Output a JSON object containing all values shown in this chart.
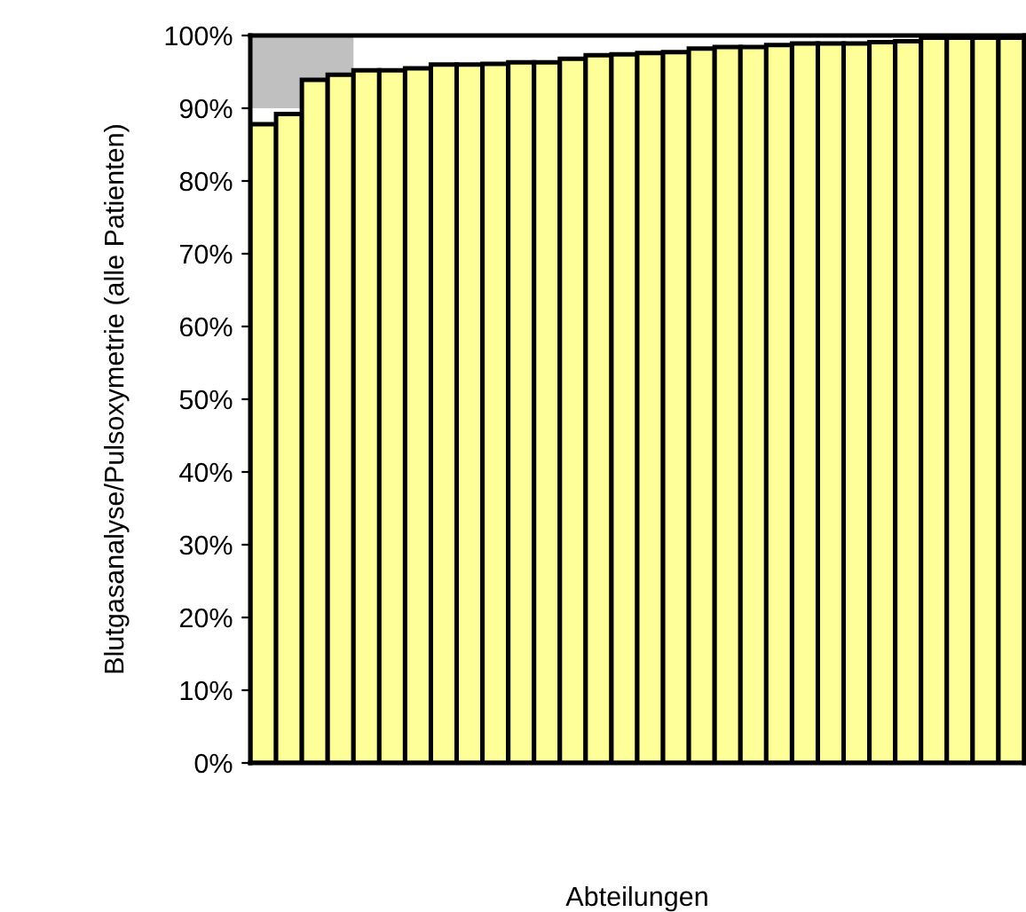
{
  "chart_data": {
    "type": "bar",
    "xlabel": "Abteilungen",
    "ylabel": "Blutgasanalyse/Pulsoxymetrie (alle Patienten)",
    "categories": [
      null,
      null,
      null,
      null,
      null,
      null,
      null,
      null,
      null,
      null,
      null,
      null,
      null,
      null,
      null,
      null,
      null,
      null,
      null,
      null,
      null,
      null,
      null,
      null,
      null,
      null,
      null,
      null,
      null,
      null
    ],
    "series": [
      {
        "color": "#ffff99",
        "values": [
          87.8,
          89.2,
          93.9,
          94.6,
          95.2,
          95.2,
          95.5,
          96.0,
          96.0,
          96.1,
          96.3,
          96.3,
          96.8,
          97.3,
          97.4,
          97.6,
          97.7,
          98.2,
          98.4,
          98.4,
          98.7,
          98.9,
          98.9,
          98.9,
          99.1,
          99.2,
          99.7,
          99.7,
          99.7,
          99.7
        ]
      }
    ],
    "ylim": [
      0,
      100
    ],
    "yticks": [
      {
        "value": 0,
        "label": "0%"
      },
      {
        "value": 10,
        "label": "10%"
      },
      {
        "value": 20,
        "label": "20%"
      },
      {
        "value": 30,
        "label": "30%"
      },
      {
        "value": 40,
        "label": "40%"
      },
      {
        "value": 50,
        "label": "50%"
      },
      {
        "value": 60,
        "label": "60%"
      },
      {
        "value": 70,
        "label": "70%"
      },
      {
        "value": 80,
        "label": "80%"
      },
      {
        "value": 90,
        "label": "90%"
      },
      {
        "value": 100,
        "label": "100%"
      }
    ],
    "bands": [
      {
        "axis": "y",
        "from": 90,
        "to": 100,
        "color": "#c0c0c0"
      }
    ],
    "tick_labels": "y",
    "grid": false
  }
}
